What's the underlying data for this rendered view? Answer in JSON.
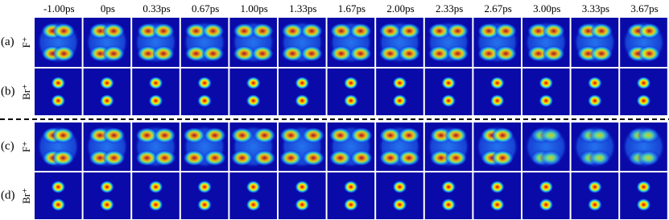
{
  "columns": [
    "-1.00ps",
    "0ps",
    "0.33ps",
    "0.67ps",
    "1.00ps",
    "1.33ps",
    "1.67ps",
    "2.00ps",
    "2.33ps",
    "2.67ps",
    "3.00ps",
    "3.33ps",
    "3.67ps"
  ],
  "rows": [
    {
      "label": "(a)",
      "ion": "F⁺"
    },
    {
      "label": "(b)",
      "ion": "Br⁺"
    },
    {
      "label": "(c)",
      "ion": "F⁺"
    },
    {
      "label": "(d)",
      "ion": "Br⁺"
    }
  ]
}
